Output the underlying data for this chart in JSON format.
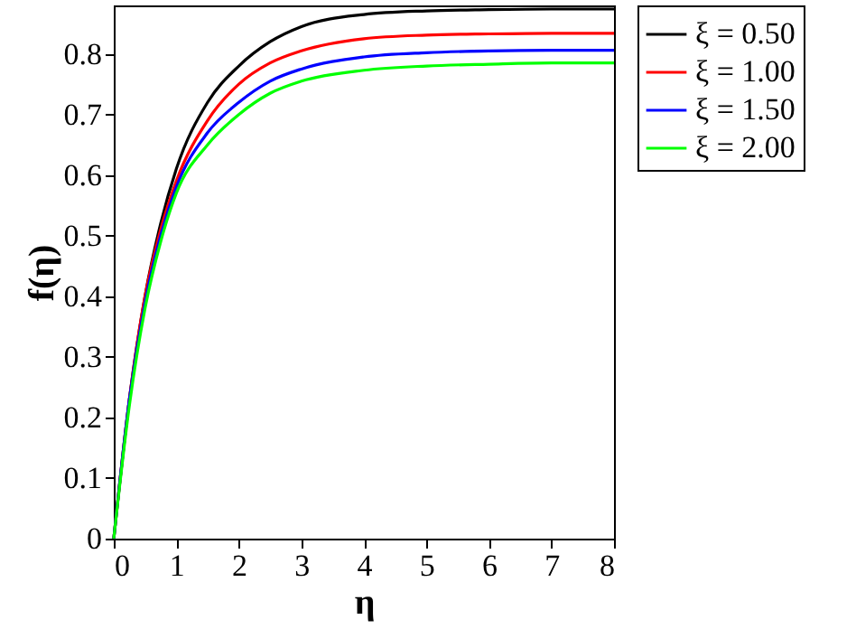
{
  "chart_data": {
    "type": "line",
    "xlabel": "η",
    "ylabel": "f(η)",
    "x": [
      0,
      0.25,
      0.5,
      0.75,
      1,
      1.5,
      2,
      2.5,
      3,
      4,
      5,
      6,
      7,
      8
    ],
    "series": [
      {
        "name": "ξ = 0.50",
        "color": "#000000",
        "values": [
          0,
          0.23,
          0.4,
          0.52,
          0.61,
          0.72,
          0.78,
          0.82,
          0.845,
          0.865,
          0.871,
          0.873,
          0.874,
          0.874
        ]
      },
      {
        "name": "ξ = 1.00",
        "color": "#ff0000",
        "values": [
          0,
          0.23,
          0.4,
          0.51,
          0.59,
          0.69,
          0.75,
          0.785,
          0.805,
          0.825,
          0.831,
          0.833,
          0.834,
          0.834
        ]
      },
      {
        "name": "ξ = 1.50",
        "color": "#0000ff",
        "values": [
          0,
          0.23,
          0.39,
          0.5,
          0.58,
          0.67,
          0.72,
          0.755,
          0.775,
          0.795,
          0.802,
          0.805,
          0.806,
          0.806
        ]
      },
      {
        "name": "ξ = 2.00",
        "color": "#00ff00",
        "values": [
          0,
          0.22,
          0.38,
          0.49,
          0.57,
          0.65,
          0.7,
          0.735,
          0.755,
          0.773,
          0.78,
          0.783,
          0.785,
          0.785
        ]
      }
    ],
    "xlim": [
      0,
      8
    ],
    "xticks": [
      0,
      1,
      2,
      3,
      4,
      5,
      6,
      7,
      8
    ],
    "ylim": [
      0,
      0.88
    ],
    "yticks": [
      0,
      0.1,
      0.2,
      0.3,
      0.4,
      0.5,
      0.6,
      0.7,
      0.8
    ],
    "legend": "right",
    "grid": false,
    "marker": "none",
    "line_style": "solid"
  }
}
